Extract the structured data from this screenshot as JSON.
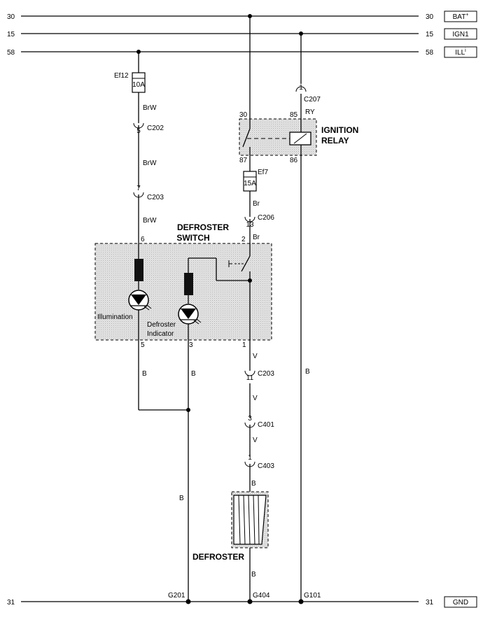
{
  "rails": {
    "bat": {
      "left": "30",
      "right": "30",
      "tag": "BAT"
    },
    "ign": {
      "left": "15",
      "right": "15",
      "tag": "IGN1"
    },
    "ill": {
      "left": "58",
      "right": "58",
      "tag": "ILL"
    },
    "gnd": {
      "left": "31",
      "right": "31",
      "tag": "GND"
    }
  },
  "fuses": {
    "ef12": {
      "name": "Ef12",
      "rating": "10A"
    },
    "ef7": {
      "name": "Ef7",
      "rating": "15A"
    }
  },
  "connectors": {
    "c202": {
      "pin": "5",
      "name": "C202"
    },
    "c203_top": {
      "pin": "7",
      "name": "C203"
    },
    "c206": {
      "pin": "13",
      "name": "C206"
    },
    "c207": {
      "pin": "1",
      "name": "C207"
    },
    "c203_bottom": {
      "pin": "11",
      "name": "C203"
    },
    "c401": {
      "pin": "3",
      "name": "C401"
    },
    "c403": {
      "pin": "1",
      "name": "C403"
    }
  },
  "wire_colors": {
    "brw_1": "BrW",
    "brw_2": "BrW",
    "brw_3": "BrW",
    "br_1": "Br",
    "br_2": "Br",
    "ry": "RY",
    "v_1": "V",
    "v_2": "V",
    "v_3": "V",
    "b_1": "B",
    "b_2": "B",
    "b_3": "B",
    "b_4": "B",
    "b_5": "B"
  },
  "relay": {
    "title_1": "IGNITION",
    "title_2": "RELAY",
    "pin_30": "30",
    "pin_85": "85",
    "pin_87": "87",
    "pin_86": "86"
  },
  "switch": {
    "title_1": "DEFROSTER",
    "title_2": "SWITCH",
    "pin_6": "6",
    "pin_2": "2",
    "pin_5": "5",
    "pin_3": "3",
    "pin_1": "1",
    "illum_label": "Illumination",
    "indicator_label_1": "Defroster",
    "indicator_label_2": "Indicator"
  },
  "defroster": {
    "label": "DEFROSTER"
  },
  "grounds": {
    "g201": "G201",
    "g404": "G404",
    "g101": "G101"
  }
}
